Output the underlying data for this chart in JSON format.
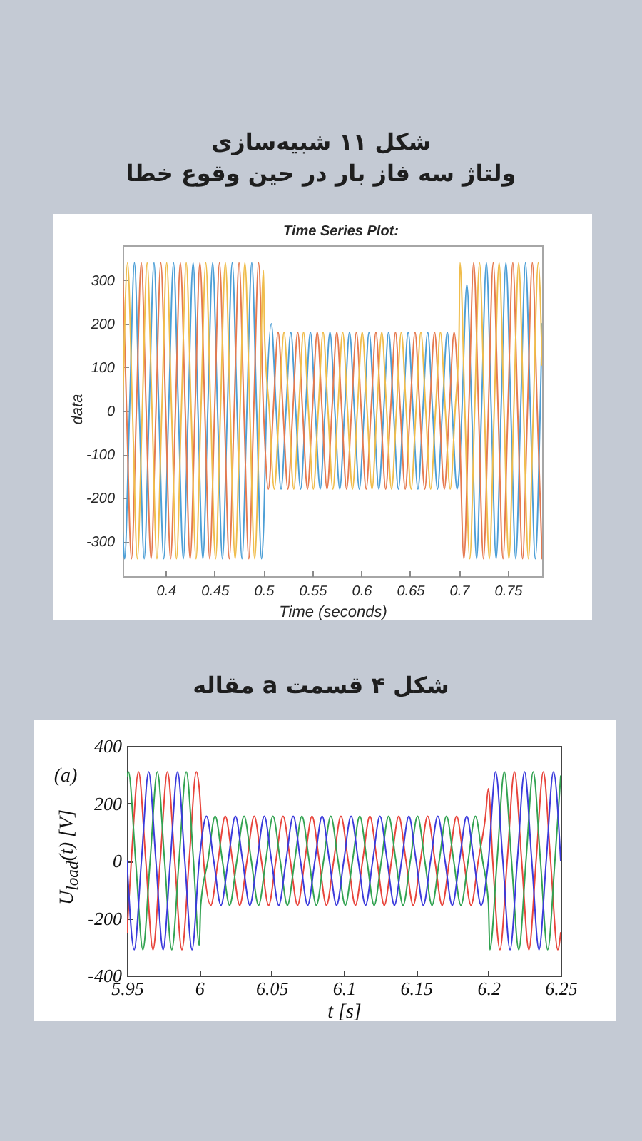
{
  "chart_data": [
    {
      "type": "line",
      "title": "شکل ۱۱ شبیه‌سازی",
      "subtitle": "ولتاژ سه فاز بار در حین وقوع خطا",
      "annotations": [
        "Time Series Plot:"
      ],
      "xlabel": "Time (seconds)",
      "ylabel": "data",
      "xlim": [
        0.356,
        0.785
      ],
      "ylim": [
        -380,
        380
      ],
      "xticks": [
        0.4,
        0.45,
        0.5,
        0.55,
        0.6,
        0.65,
        0.7,
        0.75
      ],
      "yticks": [
        -300,
        -200,
        -100,
        0,
        100,
        200,
        300
      ],
      "series": [
        {
          "color": "#4d9fd6",
          "x": [
            0.356,
            0.358,
            0.363,
            0.368,
            0.373,
            0.378,
            0.383,
            0.388,
            0.393,
            0.398,
            0.403,
            0.408,
            0.413,
            0.418,
            0.423,
            0.428,
            0.433,
            0.438,
            0.443,
            0.448,
            0.453,
            0.458,
            0.463,
            0.468,
            0.473,
            0.478,
            0.483,
            0.488,
            0.493,
            0.498,
            0.5,
            0.503,
            0.508,
            0.513,
            0.518,
            0.523,
            0.528,
            0.533,
            0.538,
            0.543,
            0.548,
            0.553,
            0.558,
            0.563,
            0.568,
            0.573,
            0.578,
            0.583,
            0.588,
            0.593,
            0.598,
            0.603,
            0.608,
            0.613,
            0.618,
            0.623,
            0.628,
            0.633,
            0.638,
            0.643,
            0.648,
            0.653,
            0.658,
            0.663,
            0.668,
            0.673,
            0.678,
            0.683,
            0.688,
            0.693,
            0.698,
            0.7,
            0.703,
            0.708,
            0.713,
            0.718,
            0.723,
            0.728,
            0.733,
            0.738,
            0.743,
            0.748,
            0.753,
            0.758,
            0.763,
            0.768,
            0.773,
            0.778,
            0.783,
            0.785
          ],
          "values": [
            -275,
            -340,
            0,
            340,
            0,
            -340,
            0,
            340,
            0,
            -340,
            0,
            340,
            0,
            -340,
            0,
            340,
            0,
            -340,
            0,
            340,
            0,
            -340,
            0,
            340,
            0,
            -340,
            0,
            340,
            0,
            -340,
            -275,
            0,
            200,
            0,
            -180,
            0,
            180,
            0,
            -180,
            0,
            180,
            0,
            -180,
            0,
            180,
            0,
            -180,
            0,
            180,
            0,
            -180,
            0,
            180,
            0,
            -180,
            0,
            180,
            0,
            -180,
            0,
            180,
            0,
            -180,
            0,
            180,
            0,
            -180,
            0,
            180,
            0,
            -180,
            -146,
            0,
            290,
            0,
            -340,
            0,
            340,
            0,
            -340,
            0,
            340,
            0,
            -340,
            0,
            340,
            0,
            -340,
            0,
            200
          ]
        },
        {
          "color": "#e57a50",
          "x": [
            0.356,
            0.36,
            0.365,
            0.37,
            0.375,
            0.38,
            0.385,
            0.39,
            0.395,
            0.4,
            0.405,
            0.41,
            0.415,
            0.42,
            0.425,
            0.43,
            0.435,
            0.44,
            0.445,
            0.45,
            0.455,
            0.46,
            0.465,
            0.47,
            0.475,
            0.48,
            0.485,
            0.49,
            0.495,
            0.5,
            0.505,
            0.51,
            0.515,
            0.52,
            0.525,
            0.53,
            0.535,
            0.54,
            0.545,
            0.55,
            0.555,
            0.56,
            0.565,
            0.57,
            0.575,
            0.58,
            0.585,
            0.59,
            0.595,
            0.6,
            0.605,
            0.61,
            0.615,
            0.62,
            0.625,
            0.63,
            0.635,
            0.64,
            0.645,
            0.65,
            0.655,
            0.66,
            0.665,
            0.67,
            0.675,
            0.68,
            0.685,
            0.69,
            0.695,
            0.7,
            0.705,
            0.71,
            0.715,
            0.72,
            0.725,
            0.73,
            0.735,
            0.74,
            0.745,
            0.75,
            0.755,
            0.76,
            0.765,
            0.77,
            0.775,
            0.78,
            0.785
          ],
          "values": [
            323,
            0,
            -340,
            0,
            340,
            0,
            -340,
            0,
            340,
            0,
            -340,
            0,
            340,
            0,
            -340,
            0,
            340,
            0,
            -340,
            0,
            340,
            0,
            -340,
            0,
            340,
            0,
            -340,
            0,
            340,
            0,
            -180,
            0,
            180,
            0,
            -180,
            0,
            180,
            0,
            -180,
            0,
            180,
            0,
            -180,
            0,
            180,
            0,
            -180,
            0,
            180,
            0,
            -180,
            0,
            180,
            0,
            -180,
            0,
            180,
            0,
            -180,
            0,
            180,
            0,
            -180,
            0,
            180,
            0,
            -180,
            0,
            180,
            0,
            -340,
            0,
            340,
            0,
            -340,
            0,
            340,
            0,
            -340,
            0,
            340,
            0,
            -340,
            0,
            340,
            0,
            -340
          ]
        },
        {
          "color": "#f0bd4c",
          "x": [
            0.356,
            0.361,
            0.366,
            0.371,
            0.376,
            0.381,
            0.386,
            0.391,
            0.396,
            0.401,
            0.406,
            0.411,
            0.416,
            0.421,
            0.426,
            0.431,
            0.436,
            0.441,
            0.446,
            0.451,
            0.456,
            0.461,
            0.466,
            0.471,
            0.476,
            0.481,
            0.486,
            0.491,
            0.496,
            0.5,
            0.501,
            0.506,
            0.511,
            0.516,
            0.521,
            0.526,
            0.531,
            0.536,
            0.541,
            0.546,
            0.551,
            0.556,
            0.561,
            0.566,
            0.571,
            0.576,
            0.581,
            0.586,
            0.591,
            0.596,
            0.601,
            0.606,
            0.611,
            0.616,
            0.621,
            0.626,
            0.631,
            0.636,
            0.641,
            0.646,
            0.651,
            0.656,
            0.661,
            0.666,
            0.671,
            0.676,
            0.681,
            0.686,
            0.691,
            0.696,
            0.7,
            0.701,
            0.706,
            0.711,
            0.716,
            0.721,
            0.726,
            0.731,
            0.736,
            0.741,
            0.746,
            0.751,
            0.756,
            0.761,
            0.766,
            0.771,
            0.776,
            0.781,
            0.785
          ],
          "values": [
            0,
            340,
            0,
            -340,
            0,
            340,
            0,
            -340,
            0,
            340,
            0,
            -340,
            0,
            340,
            0,
            -340,
            0,
            340,
            0,
            -340,
            0,
            340,
            0,
            -340,
            0,
            340,
            0,
            -340,
            0,
            323,
            180,
            0,
            -180,
            0,
            180,
            0,
            -180,
            0,
            180,
            0,
            -180,
            0,
            180,
            0,
            -180,
            0,
            180,
            0,
            -180,
            0,
            180,
            0,
            -180,
            0,
            180,
            0,
            -180,
            0,
            180,
            0,
            -180,
            0,
            180,
            0,
            -180,
            0,
            180,
            0,
            -180,
            0,
            171,
            340,
            0,
            -340,
            0,
            340,
            0,
            -340,
            0,
            340,
            0,
            -340,
            0,
            340,
            0,
            -340,
            0,
            340,
            105
          ]
        }
      ]
    },
    {
      "type": "line",
      "title": "شکل ۴ قسمت a مقاله",
      "annotations": [
        "(a)"
      ],
      "xlabel": "t [s]",
      "ylabel": "U$_{load}$(t) [V]",
      "xlim": [
        5.95,
        6.25
      ],
      "ylim": [
        -400,
        400
      ],
      "xticks": [
        5.95,
        6,
        6.05,
        6.1,
        6.15,
        6.2,
        6.25
      ],
      "yticks": [
        -400,
        -200,
        0,
        200,
        400
      ],
      "series": [
        {
          "color": "#e8453c",
          "x": [
            5.95,
            5.953,
            5.958,
            5.963,
            5.968,
            5.973,
            5.978,
            5.983,
            5.988,
            5.993,
            5.998,
            6,
            6.003,
            6.008,
            6.013,
            6.018,
            6.023,
            6.028,
            6.033,
            6.038,
            6.043,
            6.048,
            6.053,
            6.058,
            6.063,
            6.068,
            6.073,
            6.078,
            6.083,
            6.088,
            6.093,
            6.098,
            6.103,
            6.108,
            6.113,
            6.118,
            6.123,
            6.128,
            6.133,
            6.138,
            6.143,
            6.148,
            6.153,
            6.158,
            6.163,
            6.168,
            6.173,
            6.178,
            6.183,
            6.188,
            6.193,
            6.198,
            6.2,
            6.203,
            6.208,
            6.213,
            6.218,
            6.223,
            6.228,
            6.233,
            6.238,
            6.243,
            6.248,
            6.25
          ],
          "values": [
            -251,
            0,
            310,
            0,
            -310,
            0,
            310,
            0,
            -310,
            0,
            310,
            251,
            0,
            -155,
            0,
            155,
            0,
            -155,
            0,
            155,
            0,
            -155,
            0,
            155,
            0,
            -155,
            0,
            155,
            0,
            -155,
            0,
            155,
            0,
            -155,
            0,
            155,
            0,
            -155,
            0,
            155,
            0,
            -155,
            0,
            155,
            0,
            -155,
            0,
            155,
            0,
            -155,
            0,
            155,
            251,
            0,
            -310,
            0,
            310,
            0,
            -310,
            0,
            310,
            0,
            -310,
            -251
          ]
        },
        {
          "color": "#33a352",
          "x": [
            5.95,
            5.951,
            5.956,
            5.961,
            5.966,
            5.971,
            5.976,
            5.981,
            5.986,
            5.991,
            5.996,
            6,
            6.001,
            6.006,
            6.011,
            6.016,
            6.021,
            6.026,
            6.031,
            6.036,
            6.041,
            6.046,
            6.051,
            6.056,
            6.061,
            6.066,
            6.071,
            6.076,
            6.081,
            6.086,
            6.091,
            6.096,
            6.101,
            6.106,
            6.111,
            6.116,
            6.121,
            6.126,
            6.131,
            6.136,
            6.141,
            6.146,
            6.151,
            6.156,
            6.161,
            6.166,
            6.171,
            6.176,
            6.181,
            6.186,
            6.191,
            6.196,
            6.2,
            6.201,
            6.206,
            6.211,
            6.216,
            6.221,
            6.226,
            6.231,
            6.236,
            6.241,
            6.246,
            6.25
          ],
          "values": [
            295,
            310,
            0,
            -310,
            0,
            310,
            0,
            -310,
            0,
            310,
            0,
            -295,
            -155,
            0,
            155,
            0,
            -155,
            0,
            155,
            0,
            -155,
            0,
            155,
            0,
            -155,
            0,
            155,
            0,
            -155,
            0,
            155,
            0,
            -155,
            0,
            155,
            0,
            -155,
            0,
            155,
            0,
            -155,
            0,
            155,
            0,
            -155,
            0,
            155,
            0,
            -155,
            0,
            155,
            0,
            -147,
            -310,
            0,
            310,
            0,
            -310,
            0,
            310,
            0,
            -310,
            0,
            295
          ]
        },
        {
          "color": "#3b3bdc",
          "x": [
            5.95,
            5.955,
            5.96,
            5.965,
            5.97,
            5.975,
            5.98,
            5.985,
            5.99,
            5.995,
            6,
            6.005,
            6.01,
            6.015,
            6.02,
            6.025,
            6.03,
            6.035,
            6.04,
            6.045,
            6.05,
            6.055,
            6.06,
            6.065,
            6.07,
            6.075,
            6.08,
            6.085,
            6.09,
            6.095,
            6.1,
            6.105,
            6.11,
            6.115,
            6.12,
            6.125,
            6.13,
            6.135,
            6.14,
            6.145,
            6.15,
            6.155,
            6.16,
            6.165,
            6.17,
            6.175,
            6.18,
            6.185,
            6.19,
            6.195,
            6.2,
            6.205,
            6.21,
            6.215,
            6.22,
            6.225,
            6.23,
            6.235,
            6.24,
            6.245,
            6.25
          ],
          "values": [
            0,
            -310,
            0,
            310,
            0,
            -310,
            0,
            310,
            0,
            -310,
            0,
            155,
            0,
            -155,
            0,
            155,
            0,
            -155,
            0,
            155,
            0,
            -155,
            0,
            155,
            0,
            -155,
            0,
            155,
            0,
            -155,
            0,
            155,
            0,
            -155,
            0,
            155,
            0,
            -155,
            0,
            155,
            0,
            -155,
            0,
            155,
            0,
            -155,
            0,
            155,
            0,
            -155,
            0,
            310,
            0,
            -310,
            0,
            310,
            0,
            -310,
            0,
            310,
            0
          ]
        }
      ]
    }
  ]
}
